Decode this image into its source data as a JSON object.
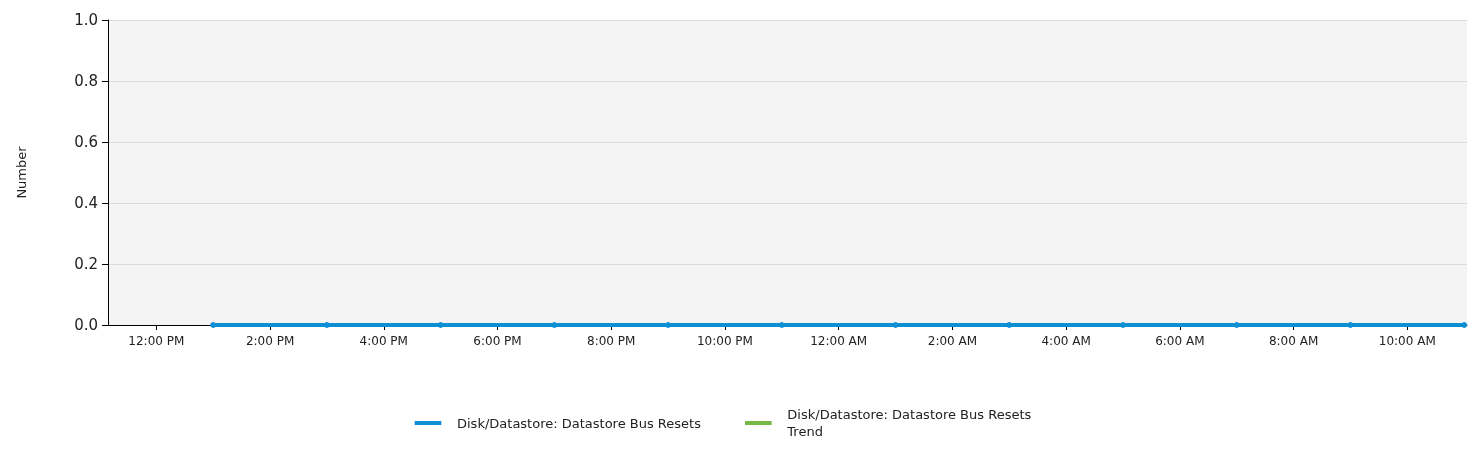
{
  "chart_data": {
    "type": "line",
    "ylabel": "Number",
    "x": [
      "--01-01T13:00",
      "--01-01T15:00",
      "--01-01T17:00",
      "--01-01T19:00",
      "--01-01T21:00",
      "--01-01T23:00",
      "--01-02T01:00",
      "--01-02T03:00",
      "--01-02T05:00",
      "--01-02T07:00",
      "--01-02T09:00",
      "--01-02T11:00"
    ],
    "series": [
      {
        "name": "Disk/Datastore: Datastore Bus Resets",
        "color": "#0e8fd4",
        "values": [
          0,
          0,
          0,
          0,
          0,
          0,
          0,
          0,
          0,
          0,
          0,
          0
        ],
        "marker": "circle"
      },
      {
        "name": "Disk/Datastore: Datastore Bus Resets Trend",
        "color": "#78b844",
        "values": [
          null,
          null,
          null,
          null,
          null,
          null,
          null,
          null,
          null,
          null,
          null,
          null
        ],
        "marker": "none"
      }
    ],
    "xlim": [
      "--01-01T11:09",
      "--01-02T11:03"
    ],
    "xticks": [
      {
        "value": "--01-01T12:00",
        "label": "12:00 PM"
      },
      {
        "value": "--01-01T14:00",
        "label": "2:00 PM"
      },
      {
        "value": "--01-01T16:00",
        "label": "4:00 PM"
      },
      {
        "value": "--01-01T18:00",
        "label": "6:00 PM"
      },
      {
        "value": "--01-01T20:00",
        "label": "8:00 PM"
      },
      {
        "value": "--01-01T22:00",
        "label": "10:00 PM"
      },
      {
        "value": "--01-02T00:00",
        "label": "12:00 AM"
      },
      {
        "value": "--01-02T02:00",
        "label": "2:00 AM"
      },
      {
        "value": "--01-02T04:00",
        "label": "4:00 AM"
      },
      {
        "value": "--01-02T06:00",
        "label": "6:00 AM"
      },
      {
        "value": "--01-02T08:00",
        "label": "8:00 AM"
      },
      {
        "value": "--01-02T10:00",
        "label": "10:00 AM"
      }
    ],
    "ylim": [
      0,
      1
    ],
    "yticks": [
      {
        "value": 0,
        "label": "0.0"
      },
      {
        "value": 0.2,
        "label": "0.2"
      },
      {
        "value": 0.4,
        "label": "0.4"
      },
      {
        "value": 0.6,
        "label": "0.6"
      },
      {
        "value": 0.8,
        "label": "0.8"
      },
      {
        "value": 1,
        "label": "1.0"
      }
    ],
    "grid": "y",
    "legend": "bottom",
    "line_style": "solid"
  }
}
